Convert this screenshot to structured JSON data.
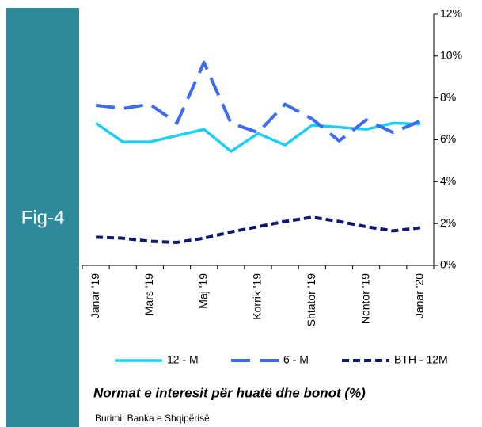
{
  "chart_data": {
    "type": "line",
    "figure_label": "Fig-4",
    "title": "Normat e interesit për huatë dhe bonot (%)",
    "source": "Burimi: Banka e Shqipërisë",
    "categories": [
      "Janar '19",
      null,
      "Mars '19",
      null,
      "Maj '19",
      null,
      "Korrik '19",
      null,
      "Shtator '19",
      null,
      "Nëntor '19",
      null,
      "Janar '20"
    ],
    "series": [
      {
        "name": "12 - M",
        "color": "#1ccdf5",
        "dash": "solid",
        "values": [
          6.8,
          5.9,
          5.9,
          6.2,
          6.5,
          5.45,
          6.3,
          5.75,
          6.7,
          6.6,
          6.5,
          6.8,
          6.75
        ]
      },
      {
        "name": "6 - M",
        "color": "#3d6cf0",
        "dash": "long",
        "values": [
          7.65,
          7.5,
          7.7,
          6.8,
          9.7,
          6.8,
          6.35,
          7.7,
          7.0,
          5.95,
          6.95,
          6.35,
          6.9
        ]
      },
      {
        "name": "BTH - 12M",
        "color": "#0d1a6e",
        "dash": "short",
        "values": [
          1.35,
          1.3,
          1.15,
          1.1,
          1.3,
          1.6,
          1.85,
          2.1,
          2.3,
          2.1,
          1.85,
          1.65,
          1.8
        ]
      }
    ],
    "ylim": [
      0,
      12
    ],
    "yticks": [
      {
        "value": 0,
        "label": "0%"
      },
      {
        "value": 2,
        "label": "2%"
      },
      {
        "value": 4,
        "label": "4%"
      },
      {
        "value": 6,
        "label": "6%"
      },
      {
        "value": 8,
        "label": "8%"
      },
      {
        "value": 10,
        "label": "10%"
      },
      {
        "value": 12,
        "label": "12%"
      }
    ],
    "y_axis_side": "right",
    "legend": "bottom",
    "grid": false
  }
}
